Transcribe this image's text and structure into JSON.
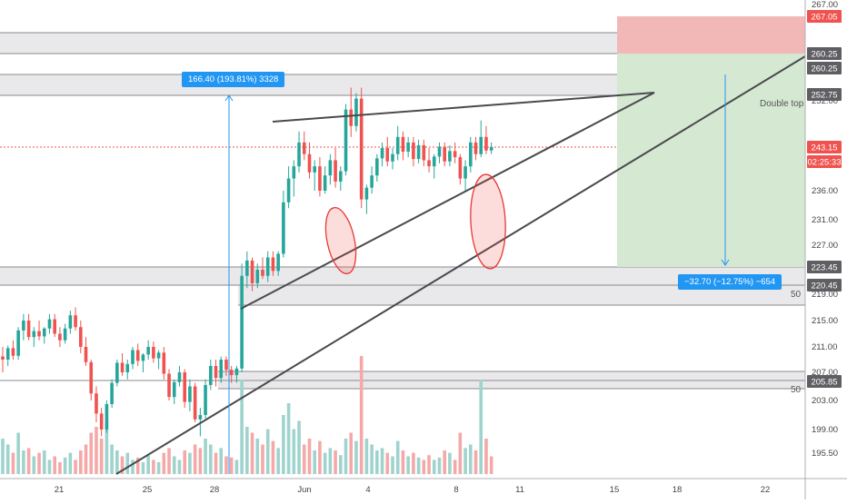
{
  "colors": {
    "up": "#26a69a",
    "down": "#ef5350",
    "vol_up": "#9fd3cd",
    "vol_down": "#f4a9a8",
    "zone_fill": "#e9e9ec",
    "zone_line": "#8a8a8e",
    "trendline": "#4a4a4e",
    "accent_blue": "#2196f3",
    "current_price": "#ef5350",
    "stop_fill": "#f2b8b8",
    "target_fill": "#d5e8d2"
  },
  "chart_data": {
    "type": "candlestick",
    "price_axis_ticks": [
      "195.50",
      "199.00",
      "203.00",
      "207.00",
      "211.00",
      "215.00",
      "219.00",
      "223.00",
      "227.00",
      "231.00",
      "236.00",
      "252.00",
      "260.00",
      "267.00"
    ],
    "time_axis_ticks": [
      "21",
      "25",
      "28",
      "Jun",
      "4",
      "8",
      "11",
      "15",
      "18",
      "22"
    ],
    "price_badges": [
      {
        "text": "267.05",
        "kind": "stop"
      },
      {
        "text": "260.25",
        "kind": "zone"
      },
      {
        "text": "260.25",
        "kind": "zone"
      },
      {
        "text": "252.75",
        "kind": "zone"
      },
      {
        "text": "243.15",
        "kind": "current"
      },
      {
        "text": "02:25:33",
        "kind": "current"
      },
      {
        "text": "223.45",
        "kind": "zone"
      },
      {
        "text": "220.45",
        "kind": "zone"
      },
      {
        "text": "205.85",
        "kind": "zone"
      }
    ],
    "zone_labels": [
      "50",
      "50",
      "50"
    ],
    "annotation": "Double top",
    "measure_up": "166.40 (193.81%) 3328",
    "measure_down": "−32.70 (−12.75%) −654",
    "grid": false,
    "candles": [
      [
        209.5,
        211,
        207,
        209.0
      ],
      [
        209.0,
        211.2,
        208,
        210.8
      ],
      [
        210.8,
        212,
        209,
        209.6
      ],
      [
        209.6,
        214,
        209,
        213.5
      ],
      [
        213.5,
        216,
        212,
        215.0
      ],
      [
        215.0,
        216,
        212,
        212.5
      ],
      [
        212.5,
        214,
        211,
        213.4
      ],
      [
        213.4,
        215,
        212,
        212.6
      ],
      [
        212.6,
        214,
        211.5,
        213.8
      ],
      [
        213.8,
        216,
        213,
        215.2
      ],
      [
        215.2,
        216,
        212.5,
        213.0
      ],
      [
        213.0,
        214,
        211,
        212.0
      ],
      [
        212.0,
        214.5,
        211.5,
        213.8
      ],
      [
        213.8,
        216.5,
        213,
        215.8
      ],
      [
        215.8,
        217,
        213.5,
        214.0
      ],
      [
        214.0,
        215,
        210,
        211.0
      ],
      [
        211.0,
        212.5,
        208,
        208.6
      ],
      [
        208.6,
        209,
        203,
        204.0
      ],
      [
        204.0,
        205,
        200,
        201.2
      ],
      [
        201.2,
        202,
        198,
        199.0
      ],
      [
        199.0,
        203,
        198.5,
        202.5
      ],
      [
        202.5,
        206,
        202,
        205.5
      ],
      [
        205.5,
        209,
        205,
        208.5
      ],
      [
        208.5,
        210,
        206.5,
        207.0
      ],
      [
        207.0,
        209,
        206,
        208.3
      ],
      [
        208.3,
        211,
        207.5,
        210.5
      ],
      [
        210.5,
        211.5,
        208,
        208.8
      ],
      [
        208.8,
        210,
        207,
        209.8
      ],
      [
        209.8,
        212,
        209,
        211.0
      ],
      [
        211.0,
        211.8,
        208.5,
        209.2
      ],
      [
        209.2,
        210.5,
        207.5,
        210.1
      ],
      [
        210.1,
        211,
        206,
        206.8
      ],
      [
        206.8,
        207.5,
        203,
        203.5
      ],
      [
        203.5,
        206,
        202.5,
        205.6
      ],
      [
        205.6,
        208,
        205,
        207.0
      ],
      [
        207.0,
        207.5,
        202,
        202.8
      ],
      [
        202.8,
        206,
        201.5,
        205.0
      ],
      [
        205.0,
        205.5,
        200,
        200.4
      ],
      [
        200.4,
        202,
        198,
        201.0
      ],
      [
        201.0,
        206,
        200.5,
        205.2
      ],
      [
        205.2,
        209,
        204.5,
        208.0
      ],
      [
        208.0,
        209,
        205,
        206.2
      ],
      [
        206.2,
        209.5,
        205.5,
        209.0
      ],
      [
        209.0,
        209.5,
        206.5,
        207.4
      ],
      [
        207.4,
        208,
        205.5,
        206.6
      ],
      [
        206.6,
        208,
        205.5,
        207.6
      ],
      [
        207.6,
        224,
        207,
        222.0
      ],
      [
        222.0,
        226,
        220,
        224.5
      ],
      [
        224.5,
        225,
        219.5,
        220.8
      ],
      [
        220.8,
        224,
        220,
        223.0
      ],
      [
        223.0,
        225,
        221.5,
        222.0
      ],
      [
        222.0,
        226,
        221,
        225.0
      ],
      [
        225.0,
        226,
        222,
        222.8
      ],
      [
        222.8,
        226,
        222,
        225.6
      ],
      [
        225.6,
        236,
        225,
        234.0
      ],
      [
        234.0,
        240,
        233,
        238.0
      ],
      [
        238.0,
        241,
        235,
        240.0
      ],
      [
        240.0,
        246,
        239,
        244.0
      ],
      [
        244.0,
        246,
        241,
        242.0
      ],
      [
        242.0,
        244,
        238,
        239.0
      ],
      [
        239.0,
        241,
        236,
        240.0
      ],
      [
        240.0,
        241.5,
        235,
        236.0
      ],
      [
        236.0,
        240,
        235.5,
        238.5
      ],
      [
        238.5,
        242,
        237,
        241.0
      ],
      [
        241.0,
        243,
        236.5,
        237.5
      ],
      [
        237.5,
        240,
        236,
        239.2
      ],
      [
        239.2,
        251,
        238.5,
        250.0
      ],
      [
        250.0,
        254,
        245,
        247.0
      ],
      [
        247.0,
        253,
        246,
        252.0
      ],
      [
        252.0,
        254,
        233,
        234.5
      ],
      [
        234.5,
        237,
        232,
        236.5
      ],
      [
        236.5,
        240,
        235.5,
        238.5
      ],
      [
        238.5,
        242,
        237.5,
        241.3
      ],
      [
        241.3,
        244,
        240,
        243.0
      ],
      [
        243.0,
        245,
        240,
        240.8
      ],
      [
        240.8,
        243,
        239.5,
        242.0
      ],
      [
        242.0,
        247,
        241,
        245.0
      ],
      [
        245.0,
        246,
        241,
        242.4
      ],
      [
        242.4,
        245,
        241.5,
        244.0
      ],
      [
        244.0,
        245,
        240,
        241.2
      ],
      [
        241.2,
        244.5,
        240.5,
        243.5
      ],
      [
        243.5,
        244.5,
        240,
        241.0
      ],
      [
        241.0,
        243,
        239,
        240.0
      ],
      [
        240.0,
        242,
        238,
        241.6
      ],
      [
        241.6,
        244,
        240.5,
        243.2
      ],
      [
        243.2,
        244,
        240,
        240.8
      ],
      [
        240.8,
        243.5,
        240,
        242.5
      ],
      [
        242.5,
        244,
        240.5,
        241.5
      ],
      [
        241.5,
        242,
        237,
        238.0
      ],
      [
        238.0,
        241,
        236,
        240.0
      ],
      [
        240.0,
        245,
        239,
        244.0
      ],
      [
        244.0,
        245,
        241,
        242.0
      ],
      [
        242.0,
        248,
        241.5,
        245.0
      ],
      [
        245.0,
        247,
        242,
        242.6
      ],
      [
        242.6,
        244,
        242,
        243.15
      ]
    ],
    "volumes": [
      [
        0.3,
        1
      ],
      [
        0.25,
        1
      ],
      [
        0.18,
        0
      ],
      [
        0.35,
        1
      ],
      [
        0.2,
        1
      ],
      [
        0.22,
        0
      ],
      [
        0.15,
        1
      ],
      [
        0.18,
        0
      ],
      [
        0.2,
        1
      ],
      [
        0.12,
        1
      ],
      [
        0.15,
        0
      ],
      [
        0.1,
        0
      ],
      [
        0.14,
        1
      ],
      [
        0.18,
        1
      ],
      [
        0.12,
        0
      ],
      [
        0.2,
        0
      ],
      [
        0.25,
        0
      ],
      [
        0.35,
        0
      ],
      [
        0.4,
        0
      ],
      [
        0.3,
        0
      ],
      [
        0.45,
        1
      ],
      [
        0.25,
        1
      ],
      [
        0.2,
        1
      ],
      [
        0.15,
        0
      ],
      [
        0.18,
        1
      ],
      [
        0.12,
        1
      ],
      [
        0.14,
        0
      ],
      [
        0.1,
        1
      ],
      [
        0.16,
        1
      ],
      [
        0.12,
        0
      ],
      [
        0.1,
        1
      ],
      [
        0.18,
        0
      ],
      [
        0.22,
        0
      ],
      [
        0.15,
        1
      ],
      [
        0.12,
        1
      ],
      [
        0.2,
        0
      ],
      [
        0.18,
        1
      ],
      [
        0.25,
        0
      ],
      [
        0.22,
        0
      ],
      [
        0.3,
        1
      ],
      [
        0.25,
        1
      ],
      [
        0.18,
        0
      ],
      [
        0.22,
        1
      ],
      [
        0.15,
        0
      ],
      [
        0.14,
        0
      ],
      [
        0.12,
        1
      ],
      [
        0.8,
        1
      ],
      [
        0.4,
        1
      ],
      [
        0.35,
        0
      ],
      [
        0.3,
        1
      ],
      [
        0.25,
        0
      ],
      [
        0.38,
        1
      ],
      [
        0.28,
        0
      ],
      [
        0.22,
        1
      ],
      [
        0.5,
        1
      ],
      [
        0.6,
        1
      ],
      [
        0.38,
        1
      ],
      [
        0.45,
        1
      ],
      [
        0.25,
        0
      ],
      [
        0.3,
        0
      ],
      [
        0.2,
        1
      ],
      [
        0.28,
        0
      ],
      [
        0.18,
        1
      ],
      [
        0.22,
        1
      ],
      [
        0.2,
        0
      ],
      [
        0.16,
        1
      ],
      [
        0.3,
        1
      ],
      [
        0.35,
        0
      ],
      [
        0.28,
        1
      ],
      [
        1.0,
        0
      ],
      [
        0.3,
        1
      ],
      [
        0.25,
        1
      ],
      [
        0.2,
        1
      ],
      [
        0.22,
        1
      ],
      [
        0.18,
        0
      ],
      [
        0.15,
        1
      ],
      [
        0.28,
        1
      ],
      [
        0.2,
        0
      ],
      [
        0.15,
        1
      ],
      [
        0.18,
        0
      ],
      [
        0.14,
        1
      ],
      [
        0.12,
        0
      ],
      [
        0.16,
        0
      ],
      [
        0.12,
        1
      ],
      [
        0.14,
        1
      ],
      [
        0.2,
        0
      ],
      [
        0.18,
        1
      ],
      [
        0.12,
        0
      ],
      [
        0.35,
        0
      ],
      [
        0.22,
        1
      ],
      [
        0.25,
        1
      ],
      [
        0.2,
        0
      ],
      [
        0.8,
        1
      ],
      [
        0.3,
        0
      ],
      [
        0.15,
        0
      ]
    ]
  }
}
